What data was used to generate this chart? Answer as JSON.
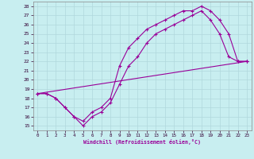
{
  "xlabel": "Windchill (Refroidissement éolien,°C)",
  "xlim": [
    -0.5,
    23.5
  ],
  "ylim": [
    14.5,
    28.5
  ],
  "xticks": [
    0,
    1,
    2,
    3,
    4,
    5,
    6,
    7,
    8,
    9,
    10,
    11,
    12,
    13,
    14,
    15,
    16,
    17,
    18,
    19,
    20,
    21,
    22,
    23
  ],
  "yticks": [
    15,
    16,
    17,
    18,
    19,
    20,
    21,
    22,
    23,
    24,
    25,
    26,
    27,
    28
  ],
  "bg_color": "#c8eef0",
  "line_color": "#990099",
  "grid_color": "#b0d8dc",
  "line1_x": [
    0,
    1,
    2,
    3,
    4,
    5,
    6,
    7,
    8,
    9,
    10,
    11,
    12,
    13,
    14,
    15,
    16,
    17,
    18,
    19,
    20,
    21,
    22,
    23
  ],
  "line1_y": [
    18.5,
    18.5,
    18,
    17,
    16,
    15.5,
    16.5,
    17.0,
    18.0,
    21.5,
    23.5,
    24.5,
    25.5,
    26.0,
    26.5,
    27.0,
    27.5,
    27.5,
    28.0,
    27.5,
    26.5,
    25.0,
    22.0,
    22.0
  ],
  "line2_x": [
    0,
    1,
    2,
    3,
    4,
    5,
    6,
    7,
    8,
    9,
    10,
    11,
    12,
    13,
    14,
    15,
    16,
    17,
    18,
    19,
    20,
    21,
    22,
    23
  ],
  "line2_y": [
    18.5,
    18.5,
    18,
    17,
    16,
    15.0,
    16.0,
    16.5,
    17.5,
    19.5,
    21.5,
    22.5,
    24.0,
    25.0,
    25.5,
    26.0,
    26.5,
    27.0,
    27.5,
    26.5,
    25.0,
    22.5,
    22.0,
    22.0
  ],
  "line3_x": [
    0,
    23
  ],
  "line3_y": [
    18.5,
    22.0
  ]
}
